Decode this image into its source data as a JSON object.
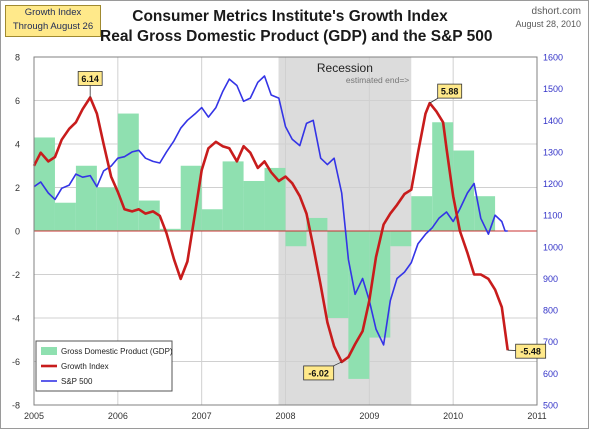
{
  "header": {
    "box_line1": "Growth Index",
    "box_line2": "Through August 26",
    "title_line1": "Consumer Metrics Institute's Growth Index",
    "title_line2": "Real Gross Domestic Product (GDP) and the S&P 500",
    "source": "dshort.com",
    "date": "August 28, 2010"
  },
  "chart_data": {
    "type": "line",
    "x_ticks": [
      "2005",
      "2006",
      "2007",
      "2008",
      "2009",
      "2010",
      "2011"
    ],
    "x_range": [
      2005,
      2011
    ],
    "y_left": {
      "range": [
        -8,
        8
      ],
      "ticks": [
        "-8",
        "-6",
        "-4",
        "-2",
        "0",
        "2",
        "4",
        "6",
        "8"
      ]
    },
    "y_right": {
      "range": [
        500,
        1600
      ],
      "ticks": [
        "500",
        "600",
        "700",
        "800",
        "900",
        "1000",
        "1100",
        "1200",
        "1300",
        "1400",
        "1500",
        "1600"
      ]
    },
    "grid": true,
    "legend_position": "bottom-left",
    "recession": {
      "label": "Recession",
      "note": "estimated end=>",
      "start": 2007.917,
      "end": 2009.5
    },
    "series": [
      {
        "name": "Gross Domestic Product (GDP)",
        "type": "bar",
        "axis": "left",
        "color": "#8fe0b0",
        "points": [
          [
            2005.0,
            4.3
          ],
          [
            2005.25,
            1.3
          ],
          [
            2005.5,
            3.0
          ],
          [
            2005.75,
            2.0
          ],
          [
            2006.0,
            5.4
          ],
          [
            2006.25,
            1.4
          ],
          [
            2006.5,
            0.1
          ],
          [
            2006.75,
            3.0
          ],
          [
            2007.0,
            1.0
          ],
          [
            2007.25,
            3.2
          ],
          [
            2007.5,
            2.3
          ],
          [
            2007.75,
            2.9
          ],
          [
            2008.0,
            -0.7
          ],
          [
            2008.25,
            0.6
          ],
          [
            2008.5,
            -4.0
          ],
          [
            2008.75,
            -6.8
          ],
          [
            2009.0,
            -4.9
          ],
          [
            2009.25,
            -0.7
          ],
          [
            2009.5,
            1.6
          ],
          [
            2009.75,
            5.0
          ],
          [
            2010.0,
            3.7
          ],
          [
            2010.25,
            1.6
          ]
        ]
      },
      {
        "name": "Growth Index",
        "type": "line",
        "axis": "left",
        "color": "#c81c1c",
        "points": [
          [
            2005.0,
            3.0
          ],
          [
            2005.08,
            3.6
          ],
          [
            2005.17,
            3.2
          ],
          [
            2005.25,
            3.4
          ],
          [
            2005.33,
            4.2
          ],
          [
            2005.42,
            4.7
          ],
          [
            2005.5,
            5.0
          ],
          [
            2005.58,
            5.6
          ],
          [
            2005.67,
            6.14
          ],
          [
            2005.75,
            5.4
          ],
          [
            2005.83,
            4.0
          ],
          [
            2005.92,
            2.5
          ],
          [
            2006.0,
            1.8
          ],
          [
            2006.08,
            1.0
          ],
          [
            2006.17,
            0.9
          ],
          [
            2006.25,
            1.0
          ],
          [
            2006.33,
            0.8
          ],
          [
            2006.42,
            0.9
          ],
          [
            2006.5,
            0.7
          ],
          [
            2006.58,
            -0.1
          ],
          [
            2006.67,
            -1.3
          ],
          [
            2006.75,
            -2.2
          ],
          [
            2006.83,
            -1.4
          ],
          [
            2006.92,
            0.8
          ],
          [
            2007.0,
            2.8
          ],
          [
            2007.08,
            3.8
          ],
          [
            2007.17,
            4.1
          ],
          [
            2007.25,
            3.9
          ],
          [
            2007.33,
            3.8
          ],
          [
            2007.42,
            3.2
          ],
          [
            2007.5,
            3.9
          ],
          [
            2007.58,
            3.6
          ],
          [
            2007.67,
            2.9
          ],
          [
            2007.75,
            3.2
          ],
          [
            2007.83,
            2.7
          ],
          [
            2007.92,
            2.3
          ],
          [
            2008.0,
            2.5
          ],
          [
            2008.08,
            2.2
          ],
          [
            2008.17,
            1.6
          ],
          [
            2008.25,
            0.8
          ],
          [
            2008.33,
            -0.7
          ],
          [
            2008.42,
            -2.5
          ],
          [
            2008.5,
            -4.2
          ],
          [
            2008.58,
            -5.3
          ],
          [
            2008.67,
            -6.02
          ],
          [
            2008.75,
            -5.8
          ],
          [
            2008.83,
            -5.2
          ],
          [
            2008.92,
            -4.6
          ],
          [
            2009.0,
            -3.2
          ],
          [
            2009.08,
            -1.2
          ],
          [
            2009.17,
            0.3
          ],
          [
            2009.25,
            0.8
          ],
          [
            2009.33,
            1.2
          ],
          [
            2009.42,
            1.7
          ],
          [
            2009.5,
            1.9
          ],
          [
            2009.58,
            3.6
          ],
          [
            2009.67,
            5.4
          ],
          [
            2009.72,
            5.88
          ],
          [
            2009.8,
            5.5
          ],
          [
            2009.88,
            5.0
          ],
          [
            2009.92,
            3.8
          ],
          [
            2010.0,
            1.6
          ],
          [
            2010.08,
            0.0
          ],
          [
            2010.17,
            -1.0
          ],
          [
            2010.25,
            -2.0
          ],
          [
            2010.33,
            -2.0
          ],
          [
            2010.42,
            -2.2
          ],
          [
            2010.5,
            -2.7
          ],
          [
            2010.58,
            -3.5
          ],
          [
            2010.65,
            -5.48
          ]
        ]
      },
      {
        "name": "S&P 500",
        "type": "line",
        "axis": "right",
        "color": "#3434e6",
        "points": [
          [
            2005.0,
            1190
          ],
          [
            2005.08,
            1205
          ],
          [
            2005.17,
            1170
          ],
          [
            2005.25,
            1150
          ],
          [
            2005.33,
            1185
          ],
          [
            2005.42,
            1195
          ],
          [
            2005.5,
            1230
          ],
          [
            2005.58,
            1220
          ],
          [
            2005.67,
            1225
          ],
          [
            2005.75,
            1190
          ],
          [
            2005.83,
            1240
          ],
          [
            2005.92,
            1255
          ],
          [
            2006.0,
            1280
          ],
          [
            2006.08,
            1285
          ],
          [
            2006.17,
            1300
          ],
          [
            2006.25,
            1305
          ],
          [
            2006.33,
            1280
          ],
          [
            2006.42,
            1270
          ],
          [
            2006.5,
            1265
          ],
          [
            2006.58,
            1300
          ],
          [
            2006.67,
            1335
          ],
          [
            2006.75,
            1375
          ],
          [
            2006.83,
            1400
          ],
          [
            2006.92,
            1420
          ],
          [
            2007.0,
            1440
          ],
          [
            2007.08,
            1410
          ],
          [
            2007.17,
            1440
          ],
          [
            2007.25,
            1490
          ],
          [
            2007.33,
            1530
          ],
          [
            2007.42,
            1510
          ],
          [
            2007.5,
            1460
          ],
          [
            2007.58,
            1470
          ],
          [
            2007.67,
            1520
          ],
          [
            2007.75,
            1540
          ],
          [
            2007.83,
            1480
          ],
          [
            2007.92,
            1470
          ],
          [
            2008.0,
            1380
          ],
          [
            2008.08,
            1340
          ],
          [
            2008.17,
            1320
          ],
          [
            2008.25,
            1390
          ],
          [
            2008.33,
            1400
          ],
          [
            2008.42,
            1280
          ],
          [
            2008.5,
            1260
          ],
          [
            2008.58,
            1280
          ],
          [
            2008.67,
            1170
          ],
          [
            2008.75,
            960
          ],
          [
            2008.83,
            850
          ],
          [
            2008.92,
            900
          ],
          [
            2009.0,
            830
          ],
          [
            2009.08,
            740
          ],
          [
            2009.17,
            690
          ],
          [
            2009.25,
            830
          ],
          [
            2009.33,
            900
          ],
          [
            2009.42,
            920
          ],
          [
            2009.5,
            950
          ],
          [
            2009.58,
            1010
          ],
          [
            2009.67,
            1040
          ],
          [
            2009.75,
            1060
          ],
          [
            2009.83,
            1090
          ],
          [
            2009.92,
            1110
          ],
          [
            2010.0,
            1080
          ],
          [
            2010.08,
            1120
          ],
          [
            2010.17,
            1170
          ],
          [
            2010.25,
            1200
          ],
          [
            2010.33,
            1090
          ],
          [
            2010.42,
            1040
          ],
          [
            2010.5,
            1100
          ],
          [
            2010.58,
            1080
          ],
          [
            2010.62,
            1050
          ],
          [
            2010.65,
            1050
          ]
        ]
      }
    ],
    "annotations": [
      {
        "text": "6.14",
        "x": 2005.67,
        "y": 6.14,
        "pos": "above"
      },
      {
        "text": "5.88",
        "x": 2009.72,
        "y": 5.88,
        "pos": "right"
      },
      {
        "text": "-6.02",
        "x": 2008.67,
        "y": -6.02,
        "pos": "below-left"
      },
      {
        "text": "-5.48",
        "x": 2010.65,
        "y": -5.48,
        "pos": "right"
      }
    ]
  }
}
